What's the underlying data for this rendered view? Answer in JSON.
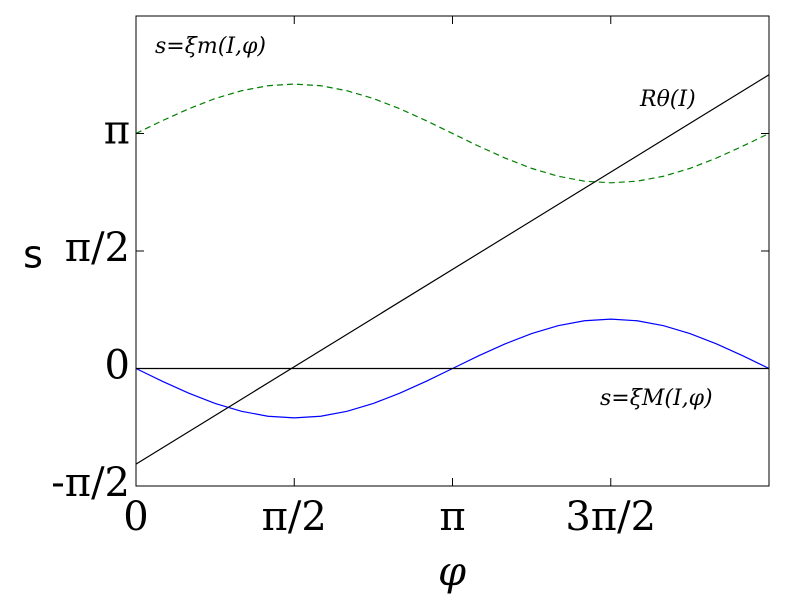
{
  "chart_data": {
    "type": "line",
    "xlabel": "φ",
    "ylabel": "s",
    "annotations": [
      "s=ξm(I,φ)",
      "Rθ(I)",
      "s=ξM(I,φ)"
    ],
    "xlim": [
      0,
      6.283
    ],
    "ylim": [
      -1.5708,
      4.712
    ],
    "xticks": [
      0,
      {
        "value": 1.5708,
        "label": "π/2"
      },
      {
        "value": 3.1416,
        "label": "π"
      },
      {
        "value": 4.7124,
        "label": "3π/2"
      }
    ],
    "yticks": [
      {
        "value": -1.5708,
        "label": "-π/2"
      },
      0,
      {
        "value": 1.5708,
        "label": "π/2"
      },
      {
        "value": 3.1416,
        "label": "π"
      }
    ],
    "series": [
      {
        "color": "#0000ff",
        "dash": false,
        "x": [
          0,
          0.262,
          0.524,
          0.785,
          1.047,
          1.309,
          1.571,
          1.833,
          2.094,
          2.356,
          2.618,
          2.88,
          3.142,
          3.403,
          3.665,
          3.927,
          4.189,
          4.451,
          4.712,
          4.974,
          5.236,
          5.498,
          5.76,
          6.021,
          6.283
        ],
        "values": [
          0,
          -0.171,
          -0.33,
          -0.467,
          -0.572,
          -0.638,
          -0.66,
          -0.638,
          -0.572,
          -0.467,
          -0.33,
          -0.171,
          0,
          0.171,
          0.33,
          0.467,
          0.572,
          0.638,
          0.66,
          0.638,
          0.572,
          0.467,
          0.33,
          0.171,
          0
        ]
      },
      {
        "color": "#008000",
        "dash": true,
        "x": [
          0,
          0.262,
          0.524,
          0.785,
          1.047,
          1.309,
          1.571,
          1.833,
          2.094,
          2.356,
          2.618,
          2.88,
          3.142,
          3.403,
          3.665,
          3.927,
          4.189,
          4.451,
          4.712,
          4.974,
          5.236,
          5.498,
          5.76,
          6.021,
          6.283
        ],
        "values": [
          3.142,
          3.313,
          3.472,
          3.609,
          3.713,
          3.78,
          3.802,
          3.78,
          3.713,
          3.609,
          3.472,
          3.313,
          3.142,
          2.971,
          2.812,
          2.675,
          2.57,
          2.504,
          2.482,
          2.504,
          2.57,
          2.675,
          2.812,
          2.971,
          3.142
        ]
      },
      {
        "color": "#000000",
        "dash": false,
        "x": [
          0,
          6.283
        ],
        "values": [
          -1.278,
          3.927
        ]
      },
      {
        "color": "#000000",
        "dash": false,
        "x": [
          0,
          6.283
        ],
        "values": [
          0,
          0
        ]
      }
    ]
  }
}
